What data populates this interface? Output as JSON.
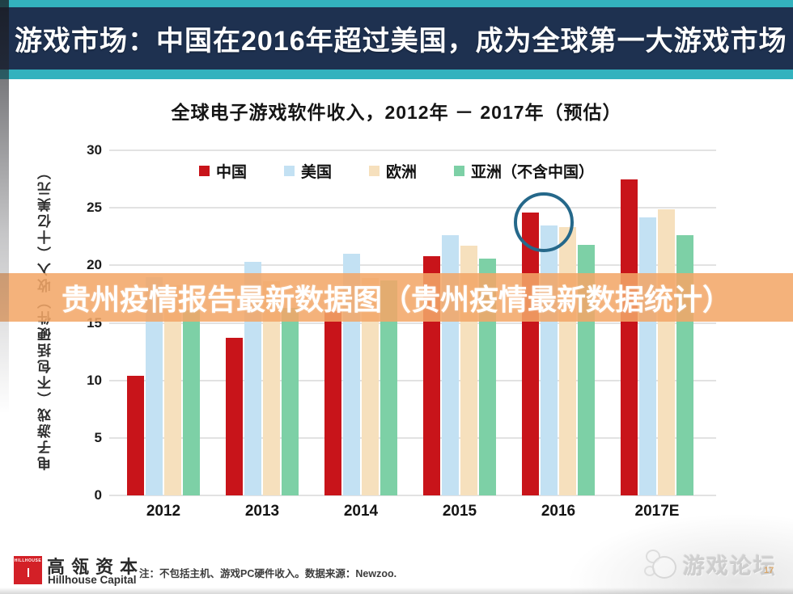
{
  "header": {
    "title": "游戏市场：中国在2016年超过美国，成为全球第一大游戏市场"
  },
  "overlay": {
    "text": "贵州疫情报告最新数据图（贵州疫情最新数据统计）"
  },
  "chart_data": {
    "type": "bar",
    "title": "全球电子游戏软件收入，2012年 － 2017年（预估）",
    "ylabel": "电子游戏（不包括硬件）收入（十亿美元）",
    "categories": [
      "2012",
      "2013",
      "2014",
      "2015",
      "2016",
      "2017E"
    ],
    "series": [
      {
        "name": "中国",
        "color": "#c8141a",
        "values": [
          10.4,
          13.7,
          16.0,
          20.8,
          24.6,
          27.5
        ]
      },
      {
        "name": "美国",
        "color": "#c3e1f3",
        "values": [
          19.0,
          20.3,
          21.0,
          22.6,
          23.5,
          24.2
        ]
      },
      {
        "name": "欧洲",
        "color": "#f6e0bd",
        "values": [
          18.3,
          18.6,
          18.9,
          21.7,
          23.3,
          24.9
        ]
      },
      {
        "name": "亚洲（不含中国）",
        "color": "#7dd0a6",
        "values": [
          16.1,
          16.3,
          18.7,
          20.6,
          21.8,
          22.6
        ]
      }
    ],
    "ylim": [
      0,
      30
    ],
    "yticks": [
      0,
      5,
      10,
      15,
      20,
      25,
      30
    ],
    "grid": true,
    "legend_position": "top",
    "annotation": {
      "shape": "circle",
      "x_category": "2016",
      "covers": [
        "中国",
        "美国"
      ]
    }
  },
  "colors": {
    "header_navy": "#1e3150",
    "header_teal": "#33b2be",
    "overlay_orange": "rgba(242,167,103,0.87)",
    "annotation_circle": "#25688a",
    "logo_red": "#d32027"
  },
  "footer": {
    "logo": {
      "small_text": "HILLHOUSE",
      "cn_name": "高瓴资本",
      "en_name": "Hillhouse Capital"
    },
    "note": "注：不包括主机、游戏PC硬件收入。数据来源：Newzoo.",
    "watermark_text": "游戏论坛",
    "page_number": "17"
  }
}
